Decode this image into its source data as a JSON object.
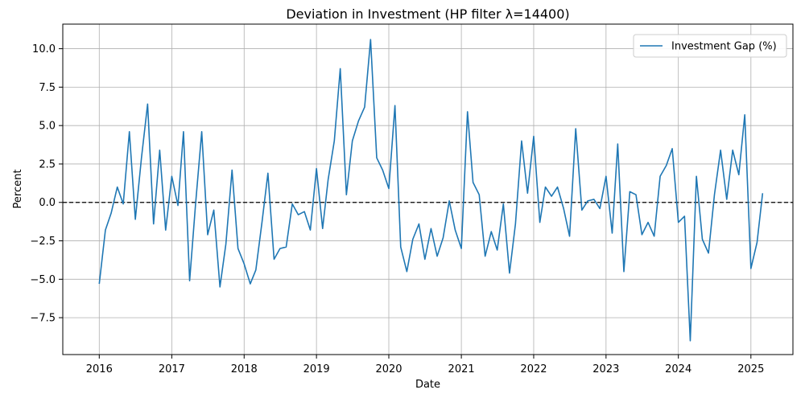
{
  "chart_data": {
    "type": "line",
    "title": "Deviation in Investment (HP filter λ=14400)",
    "xlabel": "Date",
    "ylabel": "Percent",
    "xlim": [
      "2015-07-01",
      "2025-08-01"
    ],
    "ylim": [
      -9.9,
      11.6
    ],
    "xticks": [
      {
        "date": "2016-01-01",
        "label": "2016"
      },
      {
        "date": "2017-01-01",
        "label": "2017"
      },
      {
        "date": "2018-01-01",
        "label": "2018"
      },
      {
        "date": "2019-01-01",
        "label": "2019"
      },
      {
        "date": "2020-01-01",
        "label": "2020"
      },
      {
        "date": "2021-01-01",
        "label": "2021"
      },
      {
        "date": "2022-01-01",
        "label": "2022"
      },
      {
        "date": "2023-01-01",
        "label": "2023"
      },
      {
        "date": "2024-01-01",
        "label": "2024"
      },
      {
        "date": "2025-01-01",
        "label": "2025"
      }
    ],
    "yticks": [
      {
        "value": -7.5,
        "label": "−7.5"
      },
      {
        "value": -5.0,
        "label": "−5.0"
      },
      {
        "value": -2.5,
        "label": "−2.5"
      },
      {
        "value": 0.0,
        "label": "0.0"
      },
      {
        "value": 2.5,
        "label": "2.5"
      },
      {
        "value": 5.0,
        "label": "5.0"
      },
      {
        "value": 7.5,
        "label": "7.5"
      },
      {
        "value": 10.0,
        "label": "10.0"
      }
    ],
    "grid": true,
    "legend_position": "top-right",
    "reference_line": {
      "y": 0,
      "style": "dashed",
      "color": "#000000"
    },
    "series": [
      {
        "name": "Investment Gap (%)",
        "color": "#1f77b4",
        "x": [
          "2016-01",
          "2016-02",
          "2016-03",
          "2016-04",
          "2016-05",
          "2016-06",
          "2016-07",
          "2016-08",
          "2016-09",
          "2016-10",
          "2016-11",
          "2016-12",
          "2017-01",
          "2017-02",
          "2017-03",
          "2017-04",
          "2017-05",
          "2017-06",
          "2017-07",
          "2017-08",
          "2017-09",
          "2017-10",
          "2017-11",
          "2017-12",
          "2018-01",
          "2018-02",
          "2018-03",
          "2018-04",
          "2018-05",
          "2018-06",
          "2018-07",
          "2018-08",
          "2018-09",
          "2018-10",
          "2018-11",
          "2018-12",
          "2019-01",
          "2019-02",
          "2019-03",
          "2019-04",
          "2019-05",
          "2019-06",
          "2019-07",
          "2019-08",
          "2019-09",
          "2019-10",
          "2019-11",
          "2019-12",
          "2020-01",
          "2020-02",
          "2020-03",
          "2020-04",
          "2020-05",
          "2020-06",
          "2020-07",
          "2020-08",
          "2020-09",
          "2020-10",
          "2020-11",
          "2020-12",
          "2021-01",
          "2021-02",
          "2021-03",
          "2021-04",
          "2021-05",
          "2021-06",
          "2021-07",
          "2021-08",
          "2021-09",
          "2021-10",
          "2021-11",
          "2021-12",
          "2022-01",
          "2022-02",
          "2022-03",
          "2022-04",
          "2022-05",
          "2022-06",
          "2022-07",
          "2022-08",
          "2022-09",
          "2022-10",
          "2022-11",
          "2022-12",
          "2023-01",
          "2023-02",
          "2023-03",
          "2023-04",
          "2023-05",
          "2023-06",
          "2023-07",
          "2023-08",
          "2023-09",
          "2023-10",
          "2023-11",
          "2023-12",
          "2024-01",
          "2024-02",
          "2024-03",
          "2024-04",
          "2024-05",
          "2024-06",
          "2024-07",
          "2024-08",
          "2024-09",
          "2024-10",
          "2024-11",
          "2024-12",
          "2025-01",
          "2025-02",
          "2025-03"
        ],
        "values": [
          -5.3,
          -1.8,
          -0.7,
          1.0,
          -0.1,
          4.6,
          -1.1,
          2.9,
          6.4,
          -1.4,
          3.4,
          -1.8,
          1.7,
          -0.2,
          4.6,
          -5.1,
          -0.1,
          4.6,
          -2.1,
          -0.5,
          -5.5,
          -2.7,
          2.1,
          -3.0,
          -4.0,
          -5.3,
          -4.4,
          -1.3,
          1.9,
          -3.7,
          -3.0,
          -2.9,
          -0.1,
          -0.8,
          -0.6,
          -1.8,
          2.2,
          -1.7,
          1.5,
          4.0,
          8.7,
          0.5,
          4.0,
          5.3,
          6.2,
          10.6,
          2.9,
          2.1,
          0.9,
          6.3,
          -2.9,
          -4.5,
          -2.4,
          -1.4,
          -3.7,
          -1.7,
          -3.5,
          -2.3,
          0.1,
          -1.8,
          -3.0,
          5.9,
          1.3,
          0.5,
          -3.5,
          -1.9,
          -3.1,
          -0.1,
          -4.6,
          -1.4,
          4.0,
          0.6,
          4.3,
          -1.3,
          1.0,
          0.4,
          1.0,
          -0.4,
          -2.2,
          4.8,
          -0.5,
          0.1,
          0.2,
          -0.4,
          1.7,
          -2.0,
          3.8,
          -4.5,
          0.7,
          0.5,
          -2.1,
          -1.3,
          -2.2,
          1.7,
          2.4,
          3.5,
          -1.3,
          -0.9,
          -9.0,
          1.7,
          -2.4,
          -3.3,
          0.5,
          3.4,
          0.2,
          3.4,
          1.8,
          5.7,
          -4.3,
          -2.6,
          0.6
        ]
      }
    ]
  }
}
